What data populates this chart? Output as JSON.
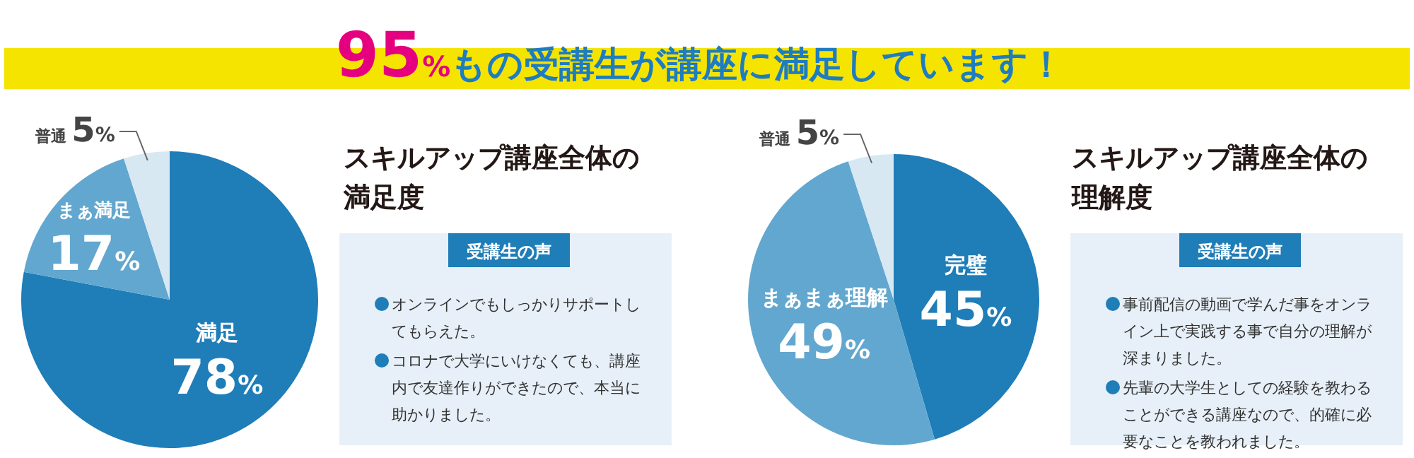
{
  "chart_data": [
    {
      "type": "other",
      "title": "95%もの受講生が講座に満足しています！"
    },
    {
      "type": "pie",
      "title": "スキルアップ講座全体の満足度",
      "categories": [
        "満足",
        "まぁ満足",
        "普通"
      ],
      "values": [
        78,
        17,
        5
      ],
      "colors": [
        "#1f7db8",
        "#62a7cf",
        "#d8e8f3"
      ],
      "value_labels": [
        "78%",
        "17%",
        "5%"
      ],
      "annotations": [
        "受講生の声",
        "オンラインでもしっかりサポートしてもらえた。",
        "コロナで大学にいけなくても、講座内で友達作りができたので、本当に助かりました。"
      ]
    },
    {
      "type": "pie",
      "title": "スキルアップ講座全体の理解度",
      "categories": [
        "完璧",
        "まぁまぁ理解",
        "普通"
      ],
      "values": [
        45,
        49,
        5
      ],
      "colors": [
        "#1f7db8",
        "#62a7cf",
        "#d8e8f3"
      ],
      "value_labels": [
        "45%",
        "49%",
        "5%"
      ],
      "annotations": [
        "受講生の声",
        "事前配信の動画で学んだ事をオンライン上で実践する事で自分の理解が深まりました。",
        "先輩の大学生としての経験を教わることができる講座なので、的確に必要なことを教われました。"
      ]
    }
  ]
}
